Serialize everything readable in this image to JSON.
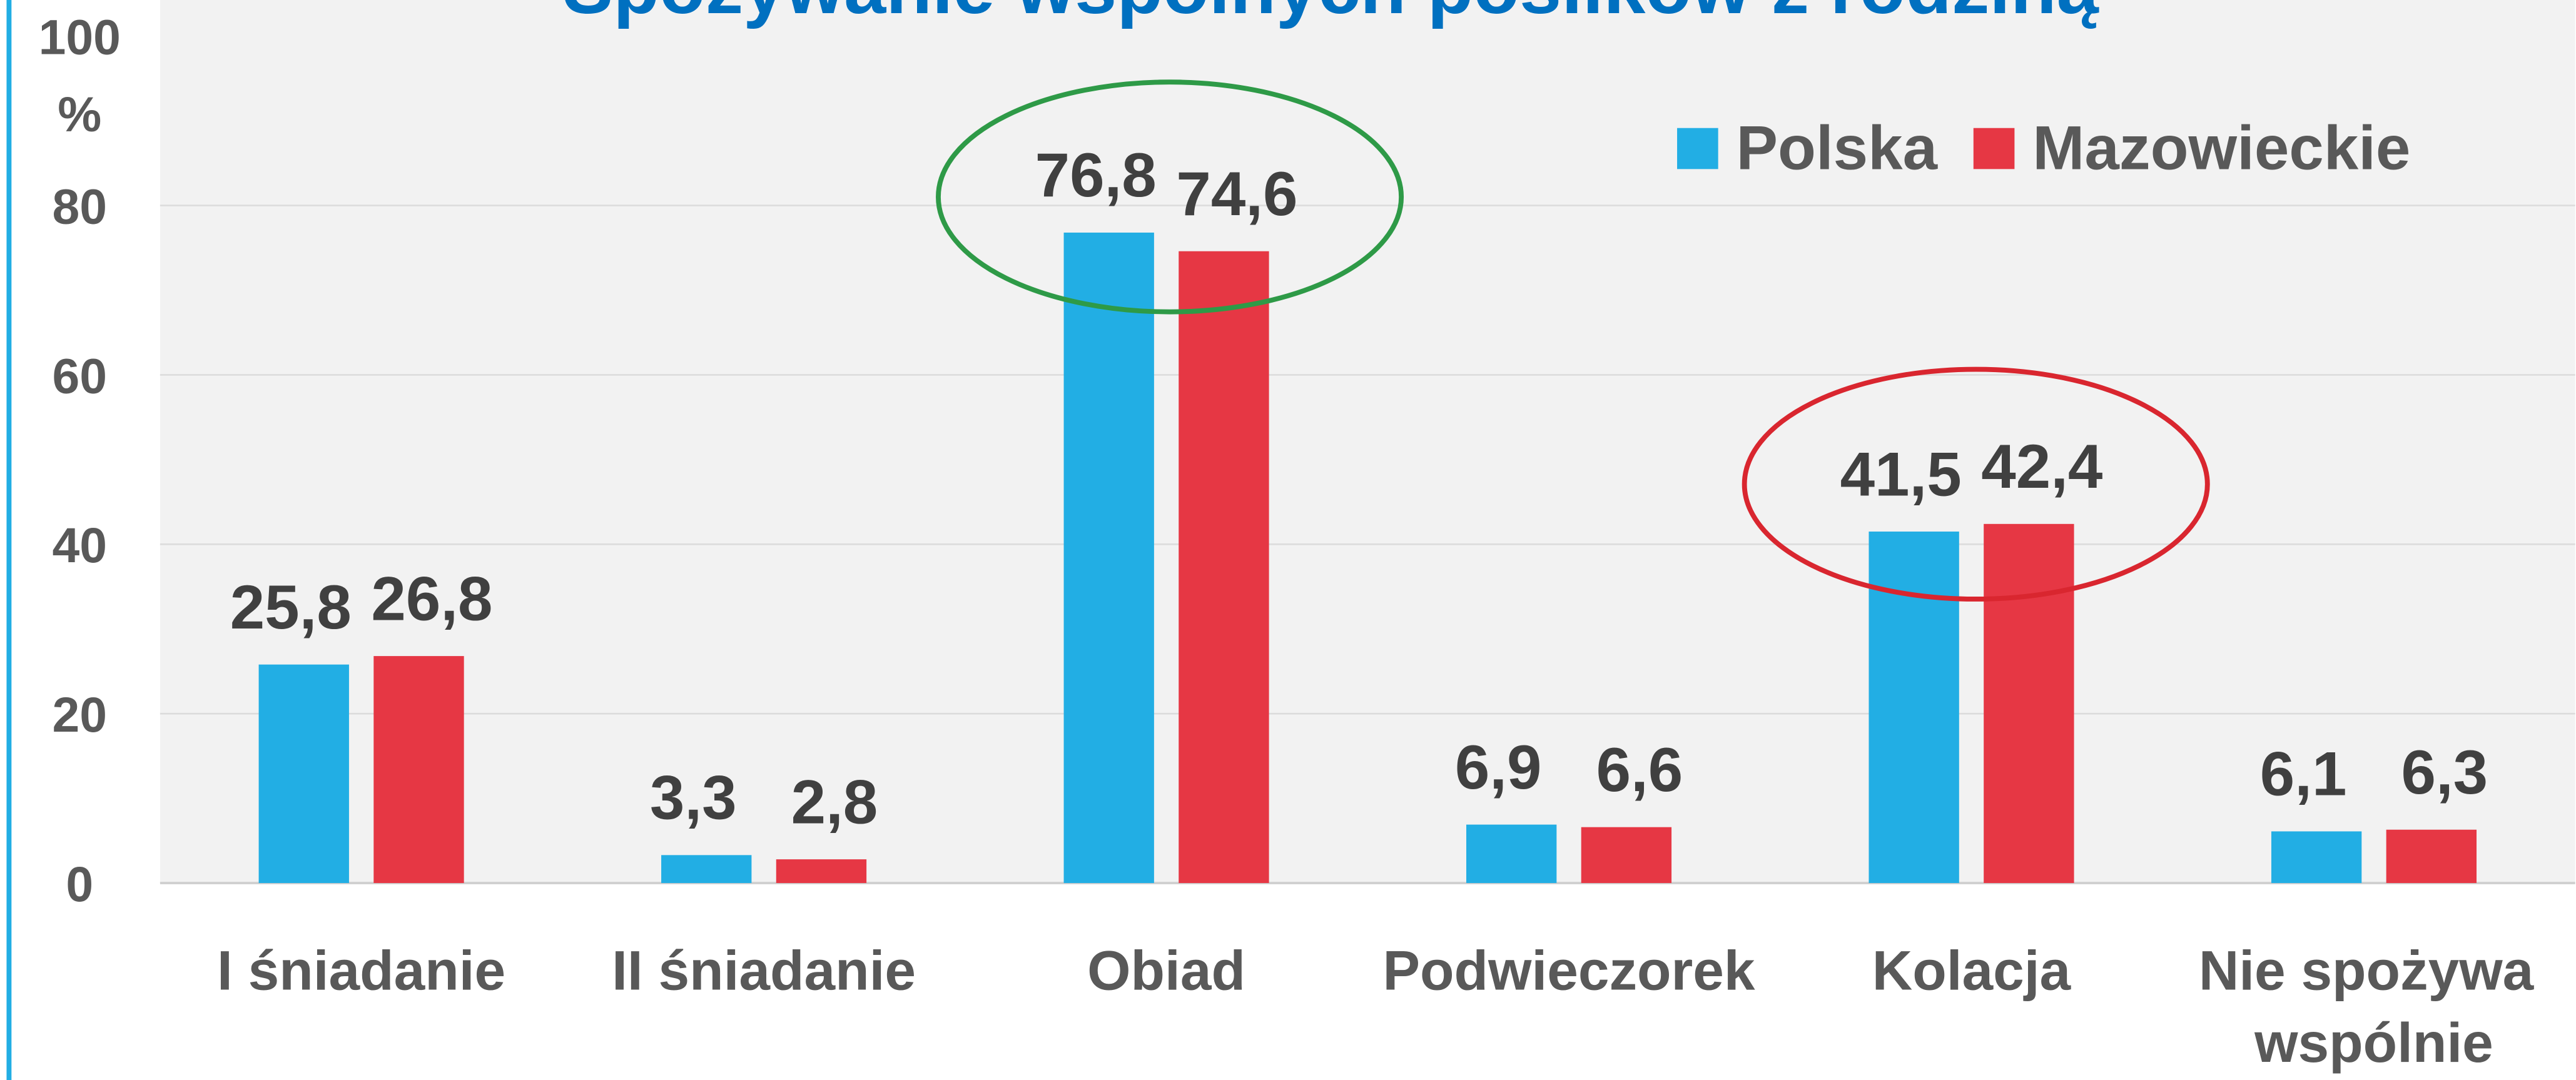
{
  "chart_data": {
    "type": "bar",
    "title": "Spożywanie wspólnych posiłków z rodziną",
    "y_label": "%",
    "categories": [
      "I śniadanie",
      "II śniadanie",
      "Obiad",
      "Podwieczorek",
      "Kolacja",
      "Nie spożywa wspólnie"
    ],
    "series": [
      {
        "name": "Polska",
        "color": "#22aee4",
        "values": [
          25.8,
          3.3,
          76.8,
          6.9,
          41.5,
          6.1
        ],
        "value_labels": [
          "25,8",
          "3,3",
          "76,8",
          "6,9",
          "41,5",
          "6,1"
        ]
      },
      {
        "name": "Mazowieckie",
        "color": "#e63744",
        "values": [
          26.8,
          2.8,
          74.6,
          6.6,
          42.4,
          6.3
        ],
        "value_labels": [
          "26,8",
          "2,8",
          "74,6",
          "6,6",
          "42,4",
          "6,3"
        ]
      }
    ],
    "ylim": [
      0,
      100
    ],
    "yticks": [
      0,
      20,
      40,
      60,
      80,
      100
    ],
    "grid": true,
    "legend": "top-right"
  }
}
